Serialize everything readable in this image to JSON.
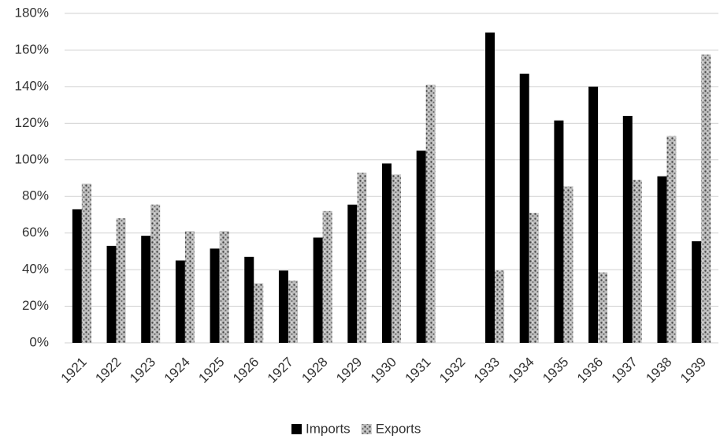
{
  "chart_data": {
    "type": "bar",
    "categories": [
      "1921",
      "1922",
      "1923",
      "1924",
      "1925",
      "1926",
      "1927",
      "1928",
      "1929",
      "1930",
      "1931",
      "1932",
      "1933",
      "1934",
      "1935",
      "1936",
      "1937",
      "1938",
      "1939"
    ],
    "series": [
      {
        "name": "Imports",
        "color": "#000000",
        "values": [
          73,
          53,
          58.5,
          45,
          51.5,
          47,
          39.5,
          57.5,
          75.5,
          98,
          105,
          null,
          169.5,
          147,
          121.5,
          140,
          124,
          91,
          55.5
        ]
      },
      {
        "name": "Exports",
        "color": "#9a9a9a",
        "values": [
          87,
          68,
          75.5,
          61,
          61,
          32.5,
          34,
          72,
          93,
          92,
          141,
          null,
          39.5,
          71,
          85.5,
          38.5,
          89,
          113,
          157.5
        ]
      }
    ],
    "ylim": [
      0,
      180
    ],
    "yticks": [
      {
        "value": 0,
        "label": "0%"
      },
      {
        "value": 20,
        "label": "20%"
      },
      {
        "value": 40,
        "label": "40%"
      },
      {
        "value": 60,
        "label": "60%"
      },
      {
        "value": 80,
        "label": "80%"
      },
      {
        "value": 100,
        "label": "100%"
      },
      {
        "value": 120,
        "label": "120%"
      },
      {
        "value": 140,
        "label": "140%"
      },
      {
        "value": 160,
        "label": "160%"
      },
      {
        "value": 180,
        "label": "180%"
      }
    ],
    "grid": true,
    "legend": "bottom"
  }
}
